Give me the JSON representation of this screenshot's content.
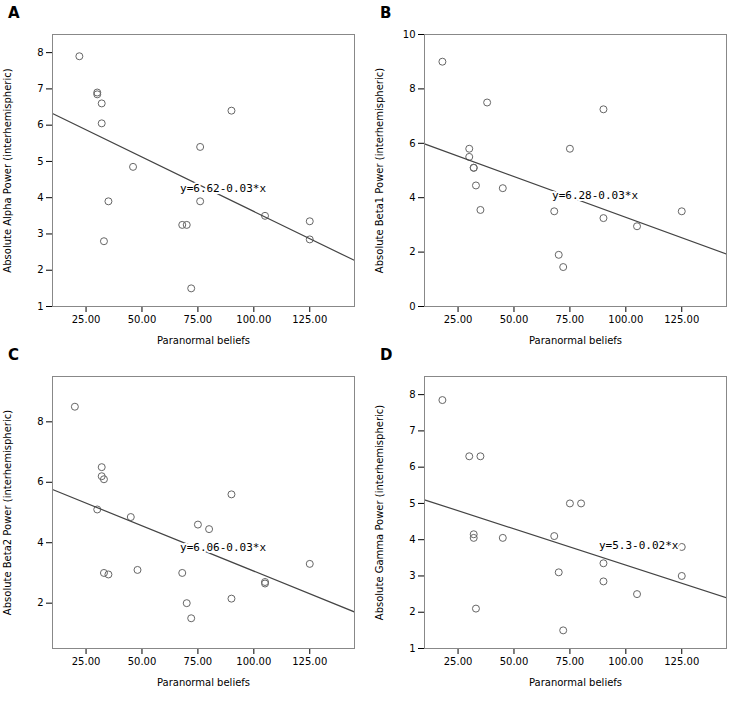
{
  "chart_data": [
    {
      "type": "scatter",
      "title": "A",
      "xlabel": "Paranormal beliefs",
      "ylabel": "Absolute Alpha Power (interhemispheric)",
      "xlim": [
        10,
        145
      ],
      "ylim": [
        1,
        8.5
      ],
      "xticks": [
        {
          "value": 25,
          "label": "25.00"
        },
        {
          "value": 50,
          "label": "50.00"
        },
        {
          "value": 75,
          "label": "75.00"
        },
        {
          "value": 100,
          "label": "100.00"
        },
        {
          "value": 125,
          "label": "125.00"
        }
      ],
      "yticks": [
        1,
        2,
        3,
        4,
        5,
        6,
        7,
        8
      ],
      "series": [
        {
          "type": "scatter",
          "marker": "circle",
          "color": "#666666",
          "x": [
            22,
            30,
            30,
            32,
            32,
            33,
            35,
            46,
            68,
            70,
            72,
            76,
            76,
            90,
            105,
            125,
            125
          ],
          "values": [
            7.9,
            6.85,
            6.9,
            6.6,
            6.05,
            2.8,
            3.9,
            4.85,
            3.25,
            3.25,
            1.5,
            5.4,
            3.9,
            6.4,
            3.5,
            3.35,
            2.85
          ]
        },
        {
          "type": "line",
          "color": "#444444",
          "x": [
            10,
            145
          ],
          "values": [
            6.32,
            2.27
          ]
        }
      ],
      "annotations": [
        {
          "text": "y=6.62-0.03*x",
          "x": 67,
          "y": 4.25
        }
      ]
    },
    {
      "type": "scatter",
      "title": "B",
      "xlabel": "Paranormal beliefs",
      "ylabel": "Absolute Beta1 Power (interhemispheric)",
      "xlim": [
        10,
        145
      ],
      "ylim": [
        0,
        10
      ],
      "xticks": [
        {
          "value": 25,
          "label": "25.00"
        },
        {
          "value": 50,
          "label": "50.00"
        },
        {
          "value": 75,
          "label": "75.00"
        },
        {
          "value": 100,
          "label": "100.00"
        },
        {
          "value": 125,
          "label": "125.00"
        }
      ],
      "yticks": [
        0,
        2,
        4,
        6,
        8,
        10
      ],
      "series": [
        {
          "type": "scatter",
          "marker": "circle",
          "color": "#666666",
          "x": [
            18,
            30,
            30,
            32,
            32,
            33,
            35,
            38,
            45,
            68,
            70,
            72,
            75,
            90,
            90,
            105,
            125
          ],
          "values": [
            9.0,
            5.8,
            5.5,
            5.1,
            5.1,
            4.45,
            3.55,
            7.5,
            4.35,
            3.5,
            1.9,
            1.45,
            5.8,
            7.25,
            3.25,
            2.95,
            3.5
          ]
        },
        {
          "type": "line",
          "color": "#444444",
          "x": [
            10,
            145
          ],
          "values": [
            5.98,
            1.93
          ]
        }
      ],
      "annotations": [
        {
          "text": "y=6.28-0.03*x",
          "x": 67,
          "y": 4.1
        }
      ]
    },
    {
      "type": "scatter",
      "title": "C",
      "xlabel": "Paranormal beliefs",
      "ylabel": "Absolute Beta2 Power (interhemispheric)",
      "xlim": [
        10,
        145
      ],
      "ylim": [
        0.5,
        9.5
      ],
      "xticks": [
        {
          "value": 25,
          "label": "25.00"
        },
        {
          "value": 50,
          "label": "50.00"
        },
        {
          "value": 75,
          "label": "75.00"
        },
        {
          "value": 100,
          "label": "100.00"
        },
        {
          "value": 125,
          "label": "125.00"
        }
      ],
      "yticks": [
        2,
        4,
        6,
        8
      ],
      "series": [
        {
          "type": "scatter",
          "marker": "circle",
          "color": "#666666",
          "x": [
            20,
            30,
            32,
            32,
            33,
            33,
            35,
            45,
            48,
            68,
            70,
            72,
            75,
            80,
            90,
            90,
            105,
            105,
            125
          ],
          "values": [
            8.5,
            5.1,
            6.5,
            6.2,
            6.1,
            3.0,
            2.95,
            4.85,
            3.1,
            3.0,
            2.0,
            1.5,
            4.6,
            4.45,
            5.6,
            2.15,
            2.65,
            2.7,
            3.3
          ]
        },
        {
          "type": "line",
          "color": "#444444",
          "x": [
            10,
            145
          ],
          "values": [
            5.76,
            1.71
          ]
        }
      ],
      "annotations": [
        {
          "text": "y=6.06-0.03*x",
          "x": 67,
          "y": 3.85
        }
      ]
    },
    {
      "type": "scatter",
      "title": "D",
      "xlabel": "Paranormal beliefs",
      "ylabel": "Absolute Gamma Power (interhemispheric)",
      "xlim": [
        10,
        145
      ],
      "ylim": [
        1,
        8.5
      ],
      "xticks": [
        {
          "value": 25,
          "label": "25.00"
        },
        {
          "value": 50,
          "label": "50.00"
        },
        {
          "value": 75,
          "label": "75.00"
        },
        {
          "value": 100,
          "label": "100.00"
        },
        {
          "value": 125,
          "label": "125.00"
        }
      ],
      "yticks": [
        1,
        2,
        3,
        4,
        5,
        6,
        7,
        8
      ],
      "series": [
        {
          "type": "scatter",
          "marker": "circle",
          "color": "#666666",
          "x": [
            18,
            30,
            32,
            32,
            33,
            35,
            45,
            68,
            70,
            72,
            75,
            80,
            90,
            90,
            105,
            125,
            125
          ],
          "values": [
            7.85,
            6.3,
            4.15,
            4.05,
            2.1,
            6.3,
            4.05,
            4.1,
            3.1,
            1.5,
            5.0,
            5.0,
            3.35,
            2.85,
            2.5,
            3.0,
            3.8
          ]
        },
        {
          "type": "line",
          "color": "#444444",
          "x": [
            10,
            145
          ],
          "values": [
            5.1,
            2.4
          ]
        }
      ],
      "annotations": [
        {
          "text": "y=5.3-0.02*x",
          "x": 88,
          "y": 3.85
        }
      ]
    }
  ]
}
